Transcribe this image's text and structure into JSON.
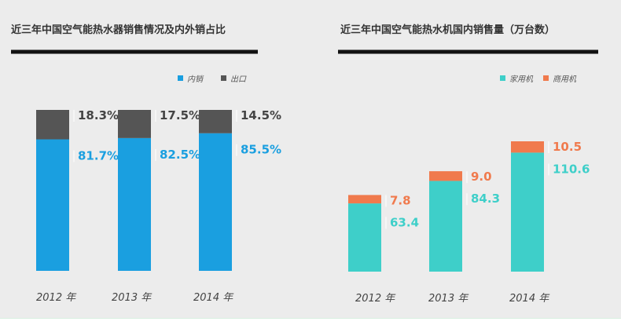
{
  "chart_data": [
    {
      "type": "bar",
      "stacked": true,
      "title": "近三年中国空气能热水器销售情况及内外销占比",
      "categories": [
        "2012 年",
        "2013 年",
        "2014 年"
      ],
      "series": [
        {
          "name": "内销",
          "values": [
            81.7,
            82.5,
            85.5
          ],
          "labels": [
            "81.7%",
            "82.5%",
            "85.5%"
          ],
          "color": "#1a9fe0"
        },
        {
          "name": "出口",
          "values": [
            18.3,
            17.5,
            14.5
          ],
          "labels": [
            "18.3%",
            "17.5%",
            "14.5%"
          ],
          "color": "#555555"
        }
      ],
      "legend": "top-right",
      "grid": false
    },
    {
      "type": "bar",
      "stacked": true,
      "title": "近三年中国空气能热水机国内销售量（万台数）",
      "categories": [
        "2012 年",
        "2013 年",
        "2014 年"
      ],
      "series": [
        {
          "name": "家用机",
          "values": [
            63.4,
            84.3,
            110.6
          ],
          "labels": [
            "63.4",
            "84.3",
            "110.6"
          ],
          "color": "#3ecfc9"
        },
        {
          "name": "商用机",
          "values": [
            7.8,
            9.0,
            10.5
          ],
          "labels": [
            "7.8",
            "9.0",
            "10.5"
          ],
          "color": "#f07a4d"
        }
      ],
      "legend": "top-right",
      "grid": false
    }
  ]
}
